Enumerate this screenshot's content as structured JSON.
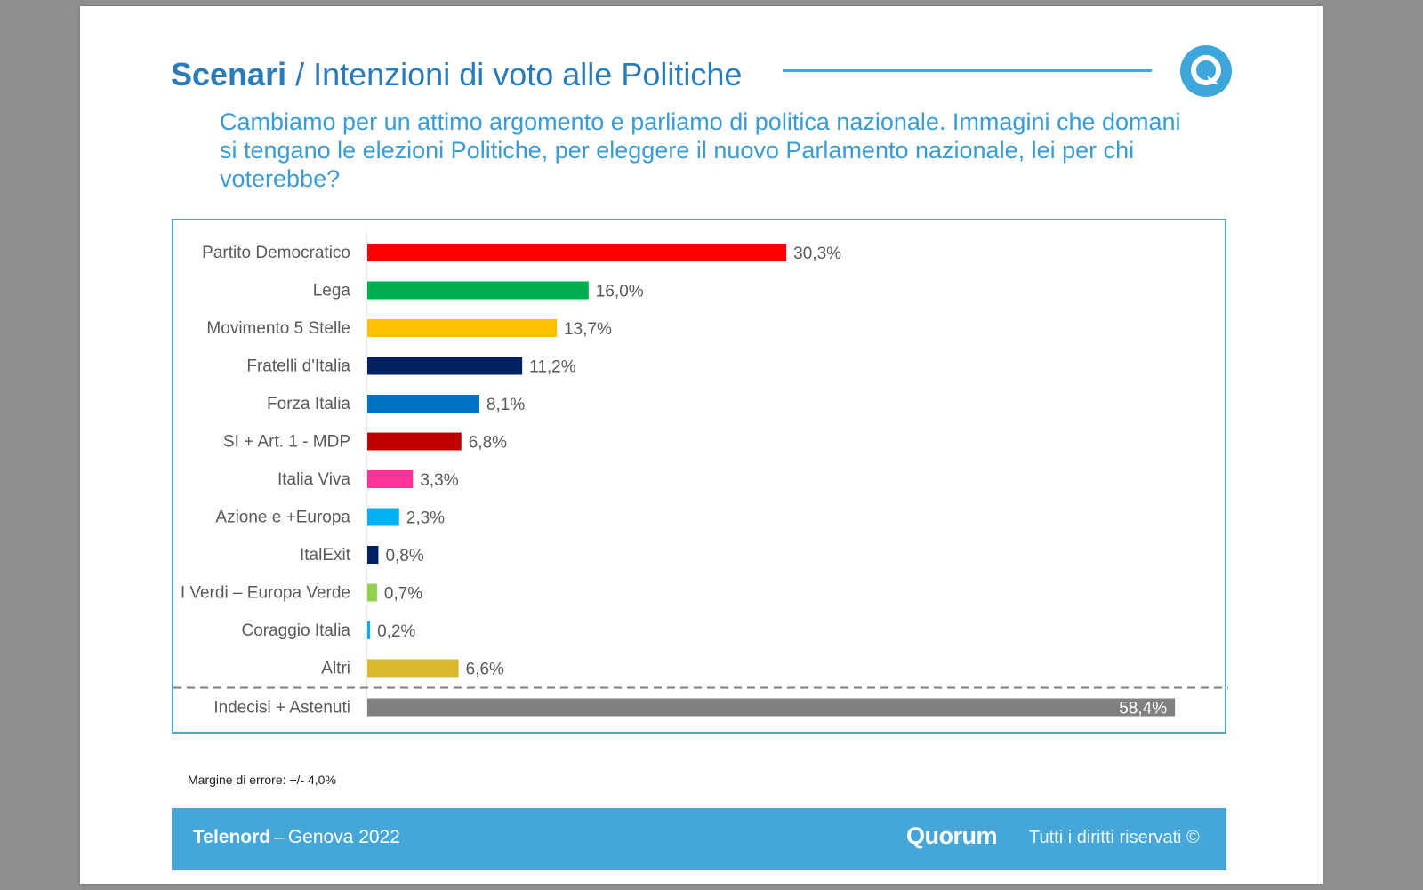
{
  "header": {
    "title_strong": "Scenari",
    "title_separator": "/",
    "title_rest": "Intenzioni di voto alle Politiche"
  },
  "question": "Cambiamo per un attimo argomento e parliamo di politica nazionale. Immagini che domani si tengano le elezioni Politiche, per eleggere il nuovo Parlamento nazionale, lei per chi voterebbe?",
  "chart_data": {
    "type": "bar",
    "orientation": "horizontal",
    "categories": [
      "Partito Democratico",
      "Lega",
      "Movimento 5 Stelle",
      "Fratelli d'Italia",
      "Forza Italia",
      "SI + Art. 1 - MDP",
      "Italia Viva",
      "Azione e +Europa",
      "ItalExit",
      "I Verdi – Europa Verde",
      "Coraggio Italia",
      "Altri",
      "Indecisi + Astenuti"
    ],
    "values": [
      30.3,
      16.0,
      13.7,
      11.2,
      8.1,
      6.8,
      3.3,
      2.3,
      0.8,
      0.7,
      0.2,
      6.6,
      58.4
    ],
    "value_labels": [
      "30,3%",
      "16,0%",
      "13,7%",
      "11,2%",
      "8,1%",
      "6,8%",
      "3,3%",
      "2,3%",
      "0,8%",
      "0,7%",
      "0,2%",
      "6,6%",
      "58,4%"
    ],
    "colors": [
      "#ff0000",
      "#00b050",
      "#ffc000",
      "#002060",
      "#0070c0",
      "#c00000",
      "#ff3399",
      "#00b0f0",
      "#002060",
      "#92d050",
      "#00b0f0",
      "#dbb92c",
      "#808080"
    ],
    "separator_before_last": true,
    "xlim": [
      0,
      60
    ],
    "unit": "%"
  },
  "footnote": "Margine di errore: +/- 4,0%",
  "footer": {
    "source_strong": "Telenord",
    "dash": "–",
    "source_rest": "Genova 2022",
    "brand": "Quorum",
    "rights": "Tutti i diritti riservati ©"
  }
}
